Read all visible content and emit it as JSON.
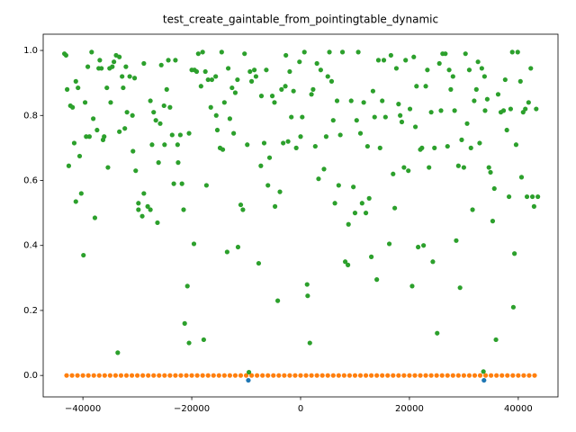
{
  "chart_data": {
    "type": "scatter",
    "title": "test_create_gaintable_from_pointingtable_dynamic",
    "xlim": [
      -47300,
      47300
    ],
    "ylim": [
      -0.066,
      1.05
    ],
    "xticks": [
      {
        "value": -40000,
        "label": "−40000"
      },
      {
        "value": -20000,
        "label": "−20000"
      },
      0,
      20000,
      40000
    ],
    "yticks": [
      {
        "value": 0,
        "label": "0.0"
      },
      {
        "value": 0.2,
        "label": "0.2"
      },
      {
        "value": 0.4,
        "label": "0.4"
      },
      {
        "value": 0.6,
        "label": "0.6"
      },
      {
        "value": 0.8,
        "label": "0.8"
      },
      {
        "value": 1,
        "label": "1.0"
      }
    ],
    "series": [
      {
        "color": "#1f77b4",
        "x": [
          -9600,
          33700
        ],
        "y": [
          -0.015,
          -0.015
        ]
      },
      {
        "color": "#ff7f0e",
        "x": [
          -43000,
          -42000,
          -41000,
          -40000,
          -39000,
          -38000,
          -37000,
          -36000,
          -35000,
          -34000,
          -33000,
          -32000,
          -31000,
          -30000,
          -29000,
          -28000,
          -27000,
          -26000,
          -25000,
          -24000,
          -23000,
          -22000,
          -21000,
          -20000,
          -19000,
          -18000,
          -17000,
          -16000,
          -15000,
          -14000,
          -13000,
          -12000,
          -11000,
          -10000,
          -9000,
          -8000,
          -7000,
          -6000,
          -5000,
          -4000,
          -3000,
          -2000,
          -1000,
          0,
          1000,
          2000,
          3000,
          4000,
          5000,
          6000,
          7000,
          8000,
          9000,
          10000,
          11000,
          12000,
          13000,
          14000,
          15000,
          16000,
          17000,
          18000,
          19000,
          20000,
          21000,
          22000,
          23000,
          24000,
          25000,
          26000,
          27000,
          28000,
          29000,
          30000,
          31000,
          32000,
          33000,
          34000,
          35000,
          36000,
          37000,
          38000,
          39000,
          40000,
          41000,
          42000,
          43000
        ],
        "y": [
          0,
          0,
          0,
          0,
          0,
          0,
          0,
          0,
          0,
          0,
          0,
          0,
          0,
          0,
          0,
          0,
          0,
          0,
          0,
          0,
          0,
          0,
          0,
          0,
          0,
          0,
          0,
          0,
          0,
          0,
          0,
          0,
          0,
          0,
          0,
          0,
          0,
          0,
          0,
          0,
          0,
          0,
          0,
          0,
          0,
          0,
          0,
          0,
          0,
          0,
          0,
          0,
          0,
          0,
          0,
          0,
          0,
          0,
          0,
          0,
          0,
          0,
          0,
          0,
          0,
          0,
          0,
          0,
          0,
          0,
          0,
          0,
          0,
          0,
          0,
          0,
          0,
          0,
          0,
          0,
          0,
          0,
          0,
          0,
          0,
          0,
          0
        ]
      },
      {
        "color": "#2ca02c",
        "x": [
          -43400,
          -43100,
          -42900,
          -42600,
          -42300,
          -41900,
          -41600,
          -41300,
          -41300,
          -40900,
          -40600,
          -40300,
          -39900,
          -39600,
          -39400,
          -39100,
          -38800,
          -38400,
          -38100,
          -37800,
          -37400,
          -37100,
          -36900,
          -36600,
          -36300,
          -36100,
          -35600,
          -35400,
          -35100,
          -34900,
          -34600,
          -34300,
          -33900,
          -33600,
          -33300,
          -33300,
          -32800,
          -32600,
          -32300,
          -32100,
          -31900,
          -31400,
          -30900,
          -30800,
          -30500,
          -30300,
          -29800,
          -29800,
          -29100,
          -28800,
          -28800,
          -28100,
          -27600,
          -27600,
          -27300,
          -27000,
          -26600,
          -26300,
          -26100,
          -25800,
          -25600,
          -25100,
          -25000,
          -24600,
          -24300,
          -24000,
          -23600,
          -23300,
          -23000,
          -22600,
          -22500,
          -22100,
          -21800,
          -21500,
          -21300,
          -20800,
          -20500,
          -20500,
          -20000,
          -19600,
          -19500,
          -19100,
          -18800,
          -18300,
          -18000,
          -17800,
          -17500,
          -17300,
          -17000,
          -16500,
          -16300,
          -15600,
          -15500,
          -15300,
          -14800,
          -14500,
          -14300,
          -14000,
          -13500,
          -13300,
          -13000,
          -12600,
          -12300,
          -12000,
          -11600,
          -11500,
          -11000,
          -10600,
          -10300,
          -9800,
          -9500,
          -9300,
          -9000,
          -8500,
          -8200,
          -7700,
          -7300,
          -7200,
          -6700,
          -6300,
          -6000,
          -5700,
          -5200,
          -4800,
          -4700,
          -4200,
          -3800,
          -3500,
          -3200,
          -2800,
          -2700,
          -2300,
          -2000,
          -1700,
          -1300,
          -800,
          -200,
          0,
          300,
          700,
          1200,
          1300,
          1700,
          2000,
          2300,
          2700,
          3000,
          3300,
          3700,
          4300,
          4700,
          5000,
          5300,
          5700,
          6000,
          6300,
          6700,
          7000,
          7300,
          7700,
          8200,
          8700,
          8800,
          9300,
          9700,
          10000,
          10300,
          10600,
          11000,
          11300,
          11600,
          12000,
          12300,
          12600,
          13000,
          13300,
          13600,
          14000,
          14300,
          14600,
          15000,
          15300,
          15600,
          16300,
          16600,
          17000,
          17300,
          17600,
          18000,
          18300,
          18600,
          19000,
          19300,
          19800,
          20100,
          20500,
          20800,
          21100,
          21300,
          21600,
          22000,
          22300,
          22600,
          23000,
          23300,
          23600,
          24000,
          24300,
          24600,
          25100,
          25500,
          25800,
          26100,
          26600,
          27000,
          27300,
          27600,
          28000,
          28300,
          28600,
          29000,
          29300,
          29600,
          30000,
          30300,
          30600,
          31000,
          31300,
          31600,
          31900,
          32300,
          32600,
          32900,
          33300,
          33600,
          33800,
          33900,
          34300,
          34600,
          34900,
          35300,
          35600,
          35900,
          36300,
          36800,
          37300,
          37600,
          37900,
          38300,
          38600,
          38900,
          39100,
          39300,
          39600,
          39900,
          40400,
          40600,
          40900,
          41300,
          41600,
          41900,
          42300,
          42600,
          42900,
          43300,
          43600
        ],
        "y": [
          0.99,
          0.985,
          0.88,
          0.645,
          0.83,
          0.825,
          0.715,
          0.905,
          0.535,
          0.885,
          0.675,
          0.56,
          0.37,
          0.84,
          0.735,
          0.95,
          0.735,
          0.995,
          0.79,
          0.485,
          0.755,
          0.945,
          0.97,
          0.945,
          0.725,
          0.735,
          0.885,
          0.64,
          0.945,
          0.84,
          0.95,
          0.965,
          0.985,
          0.07,
          0.98,
          0.75,
          0.92,
          0.885,
          0.76,
          0.95,
          0.81,
          0.92,
          0.8,
          0.69,
          0.915,
          0.63,
          0.51,
          0.53,
          0.49,
          0.96,
          0.56,
          0.52,
          0.51,
          0.845,
          0.71,
          0.81,
          0.785,
          0.47,
          0.655,
          0.775,
          0.955,
          0.83,
          0.71,
          0.88,
          0.97,
          0.825,
          0.74,
          0.59,
          0.97,
          0.71,
          0.655,
          0.74,
          0.59,
          0.51,
          0.16,
          0.275,
          0.1,
          0.745,
          0.94,
          0.405,
          0.94,
          0.935,
          0.99,
          0.89,
          0.995,
          0.11,
          0.935,
          0.585,
          0.91,
          0.825,
          0.91,
          0.92,
          0.8,
          0.755,
          0.7,
          0.995,
          0.695,
          0.84,
          0.38,
          0.945,
          0.79,
          0.885,
          0.745,
          0.87,
          0.91,
          0.395,
          0.525,
          0.51,
          0.99,
          0.71,
          0.01,
          0.935,
          0.905,
          0.94,
          0.92,
          0.345,
          0.645,
          0.86,
          0.715,
          0.94,
          0.585,
          0.67,
          0.86,
          0.84,
          0.52,
          0.23,
          0.565,
          0.88,
          0.715,
          0.89,
          0.985,
          0.72,
          0.935,
          0.795,
          0.875,
          0.7,
          0.965,
          0.735,
          0.795,
          0.995,
          0.28,
          0.245,
          0.1,
          0.865,
          0.88,
          0.705,
          0.96,
          0.605,
          0.94,
          0.635,
          0.735,
          0.92,
          0.995,
          0.905,
          0.785,
          0.53,
          0.845,
          0.585,
          0.74,
          0.995,
          0.35,
          0.34,
          0.465,
          0.845,
          0.58,
          0.5,
          0.785,
          0.995,
          0.745,
          0.53,
          0.84,
          0.5,
          0.705,
          0.545,
          0.365,
          0.875,
          0.795,
          0.295,
          0.97,
          0.7,
          0.845,
          0.97,
          0.795,
          0.405,
          0.985,
          0.62,
          0.515,
          0.945,
          0.835,
          0.8,
          0.78,
          0.64,
          0.97,
          0.63,
          0.82,
          0.275,
          0.98,
          0.765,
          0.89,
          0.395,
          0.695,
          0.7,
          0.4,
          0.89,
          0.94,
          0.64,
          0.81,
          0.35,
          0.7,
          0.13,
          0.96,
          0.815,
          0.99,
          0.99,
          0.705,
          0.94,
          0.88,
          0.92,
          0.815,
          0.415,
          0.645,
          0.27,
          0.725,
          0.64,
          0.99,
          0.775,
          0.94,
          0.7,
          0.51,
          0.845,
          0.88,
          0.965,
          0.715,
          0.945,
          0.012,
          0.92,
          0.815,
          0.85,
          0.64,
          0.625,
          0.475,
          0.575,
          0.11,
          0.865,
          0.81,
          0.815,
          0.91,
          0.755,
          0.55,
          0.82,
          0.995,
          0.21,
          0.375,
          0.71,
          0.995,
          0.905,
          0.61,
          0.81,
          0.82,
          0.55,
          0.84,
          0.945,
          0.55,
          0.52,
          0.82,
          0.55
        ]
      }
    ]
  }
}
